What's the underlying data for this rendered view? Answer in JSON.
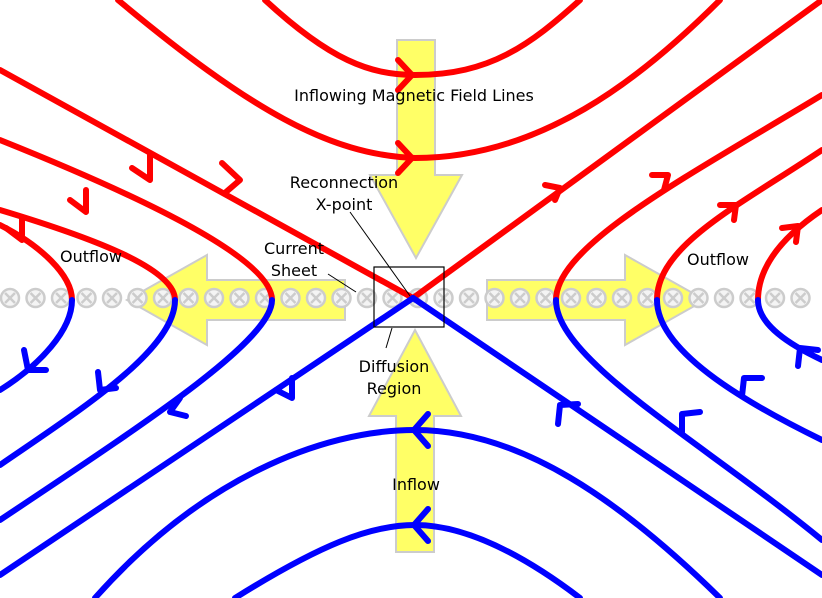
{
  "colors": {
    "field_upper": "#ff0000",
    "field_lower": "#0000ff",
    "flow_arrow": "#ffff66",
    "flow_arrow_edge": "#cccccc",
    "current_marker": "#cccccc"
  },
  "labels": {
    "inflowing_field_lines": "Inflowing Magnetic Field Lines",
    "reconnection": "Reconnection",
    "x_point": "X-point",
    "current": "Current",
    "sheet": "Sheet",
    "outflow_left": "Outflow",
    "outflow_right": "Outflow",
    "diffusion": "Diffusion",
    "region": "Region",
    "inflow": "Inflow"
  },
  "current_sheet_marker_symbol": "⊗"
}
